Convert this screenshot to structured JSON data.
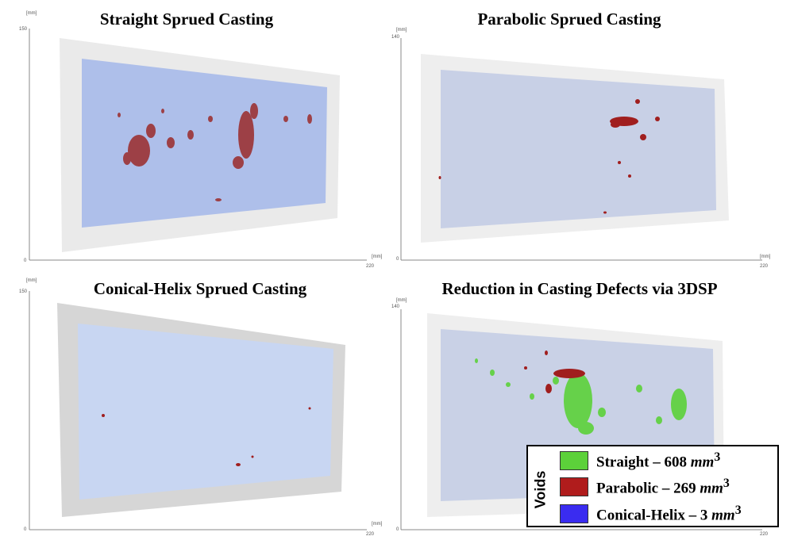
{
  "panels": [
    {
      "title": "Straight Sprued Casting",
      "axis_unit": "[mm]",
      "y_max": "150",
      "y_min": "0",
      "x_min": "0",
      "x_max": "220"
    },
    {
      "title": "Parabolic Sprued Casting",
      "axis_unit": "[mm]",
      "y_max": "140",
      "y_min": "0",
      "x_min": "0",
      "x_max": "220"
    },
    {
      "title": "Conical-Helix Sprued Casting",
      "axis_unit": "[mm]",
      "y_max": "150",
      "y_min": "0",
      "x_min": "0",
      "x_max": "220"
    },
    {
      "title": "Reduction in Casting Defects via 3DSP",
      "axis_unit": "[mm]",
      "y_max": "140",
      "y_min": "0",
      "x_min": "0",
      "x_max": "220"
    }
  ],
  "legend": {
    "title": "Voids",
    "items": [
      {
        "label": "Straight – 608",
        "unit": "mm",
        "exp": "3",
        "color": "#5cd13a"
      },
      {
        "label": "Parabolic – 269",
        "unit": "mm",
        "exp": "3",
        "color": "#b01c1c"
      },
      {
        "label": "Conical-Helix – 3",
        "unit": "mm",
        "exp": "3",
        "color": "#3a2cf0"
      }
    ]
  }
}
